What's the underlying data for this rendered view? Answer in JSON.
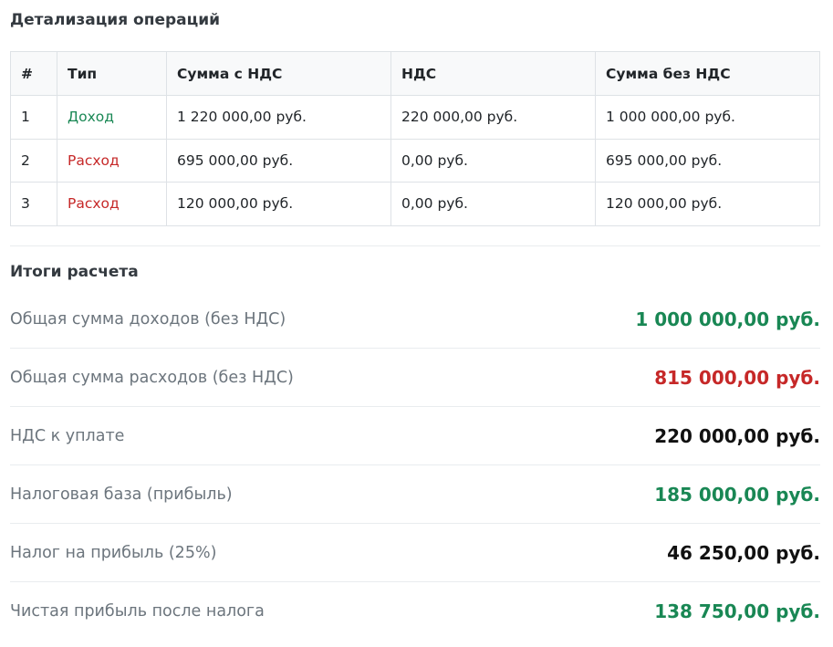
{
  "details": {
    "title": "Детализация операций",
    "headers": [
      "#",
      "Тип",
      "Сумма с НДС",
      "НДС",
      "Сумма без НДС"
    ],
    "rows": [
      {
        "num": "1",
        "type": "Доход",
        "with_vat": "1 220 000,00 руб.",
        "vat": "220 000,00 руб.",
        "without_vat": "1 000 000,00 руб."
      },
      {
        "num": "2",
        "type": "Расход",
        "with_vat": "695 000,00 руб.",
        "vat": "0,00 руб.",
        "without_vat": "695 000,00 руб."
      },
      {
        "num": "3",
        "type": "Расход",
        "with_vat": "120 000,00 руб.",
        "vat": "0,00 руб.",
        "without_vat": "120 000,00 руб."
      }
    ]
  },
  "totals": {
    "title": "Итоги расчета",
    "items": [
      {
        "label": "Общая сумма доходов (без НДС)",
        "value": "1 000 000,00 руб."
      },
      {
        "label": "Общая сумма расходов (без НДС)",
        "value": "815 000,00 руб."
      },
      {
        "label": "НДС к уплате",
        "value": "220 000,00 руб."
      },
      {
        "label": "Налоговая база (прибыль)",
        "value": "185 000,00 руб."
      },
      {
        "label": "Налог на прибыль (25%)",
        "value": "46 250,00 руб."
      },
      {
        "label": "Чистая прибыль после налога",
        "value": "138 750,00 руб."
      }
    ]
  },
  "colors": {
    "income": "#198754",
    "expense": "#c62828",
    "neutral": "#111111"
  }
}
